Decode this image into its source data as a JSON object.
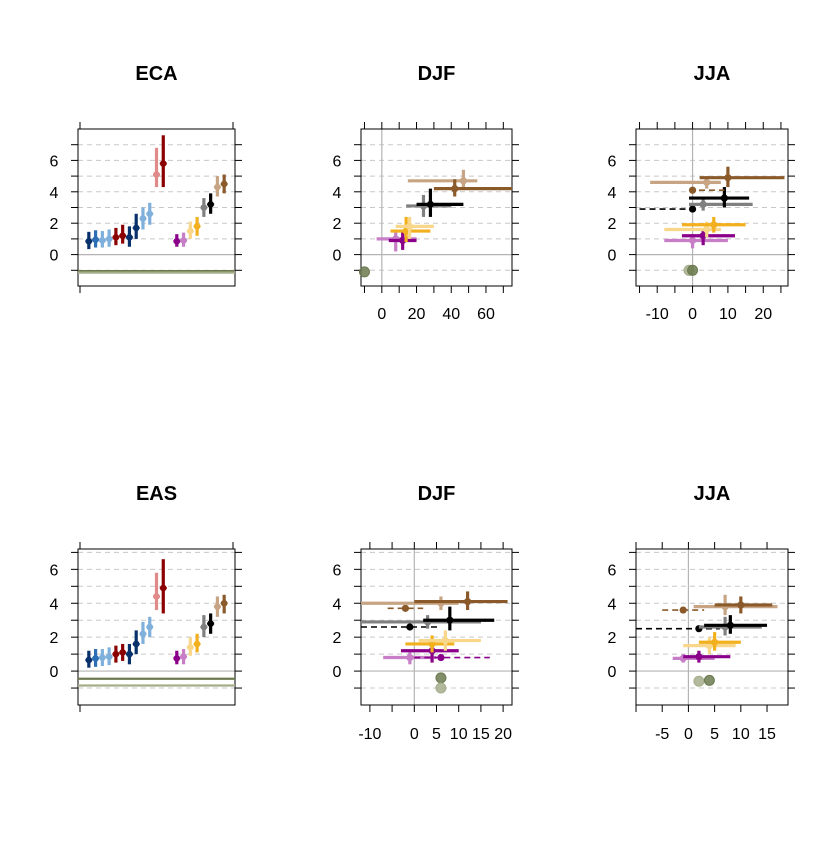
{
  "figure": {
    "type": "multi-panel error-bar plot (2 rows x 3 columns)",
    "colors": {
      "blue_dark": "#08306b",
      "blue_mid": "#2c6fb5",
      "blue_light": "#7fb0dc",
      "red_dark": "#8b0000",
      "red_light": "#e08a8a",
      "purple": "#8b008b",
      "purple_light": "#c77ec7",
      "yellow": "#f2b01e",
      "yellow_light": "#f8d68a",
      "black": "#000000",
      "gray": "#808080",
      "brown": "#8b5a2b",
      "brown_light": "#c7a584",
      "olive": "#6b7a4f",
      "olive_light": "#a4ad8c",
      "grid": "#c8c8c8",
      "zero_line": "#b4b4b4"
    }
  },
  "chart_data": [
    {
      "id": "eca-overview",
      "type": "scatter",
      "title": "ECA",
      "ylim": [
        -2,
        8
      ],
      "yticks": [
        0,
        2,
        4,
        6
      ],
      "xticks": [],
      "hlines": [
        {
          "y": -1.05,
          "color": "olive"
        },
        {
          "y": -1.15,
          "color": "olive_light"
        }
      ],
      "groups": [
        {
          "x": 1.0,
          "y": 0.85,
          "lo": 0.35,
          "hi": 1.45,
          "color": "blue_dark"
        },
        {
          "x": 1.5,
          "y": 0.95,
          "lo": 0.45,
          "hi": 1.55,
          "color": "blue_mid"
        },
        {
          "x": 2.0,
          "y": 0.9,
          "lo": 0.45,
          "hi": 1.5,
          "color": "blue_light"
        },
        {
          "x": 2.5,
          "y": 1.0,
          "lo": 0.5,
          "hi": 1.6,
          "color": "blue_light"
        },
        {
          "x": 3.0,
          "y": 1.1,
          "lo": 0.6,
          "hi": 1.7,
          "color": "red_dark"
        },
        {
          "x": 3.5,
          "y": 1.2,
          "lo": 0.7,
          "hi": 1.9,
          "color": "red_dark"
        },
        {
          "x": 4.0,
          "y": 1.1,
          "lo": 0.5,
          "hi": 1.8,
          "color": "blue_dark"
        },
        {
          "x": 4.5,
          "y": 1.7,
          "lo": 1.0,
          "hi": 2.6,
          "color": "blue_dark"
        },
        {
          "x": 5.0,
          "y": 2.3,
          "lo": 1.6,
          "hi": 3.0,
          "color": "blue_light"
        },
        {
          "x": 5.5,
          "y": 2.6,
          "lo": 1.9,
          "hi": 3.3,
          "color": "blue_light"
        },
        {
          "x": 6.0,
          "y": 5.1,
          "lo": 4.3,
          "hi": 6.8,
          "color": "red_light"
        },
        {
          "x": 6.5,
          "y": 5.8,
          "lo": 4.3,
          "hi": 7.6,
          "color": "red_dark"
        },
        {
          "x": 7.5,
          "y": 0.85,
          "lo": 0.5,
          "hi": 1.3,
          "color": "purple"
        },
        {
          "x": 8.0,
          "y": 0.9,
          "lo": 0.5,
          "hi": 1.4,
          "color": "purple_light"
        },
        {
          "x": 8.5,
          "y": 1.5,
          "lo": 1.0,
          "hi": 2.1,
          "color": "yellow_light"
        },
        {
          "x": 9.0,
          "y": 1.8,
          "lo": 1.2,
          "hi": 2.4,
          "color": "yellow"
        },
        {
          "x": 9.5,
          "y": 3.0,
          "lo": 2.4,
          "hi": 3.6,
          "color": "gray"
        },
        {
          "x": 10.0,
          "y": 3.2,
          "lo": 2.6,
          "hi": 3.9,
          "color": "black"
        },
        {
          "x": 10.5,
          "y": 4.3,
          "lo": 3.7,
          "hi": 5.0,
          "color": "brown_light"
        },
        {
          "x": 11.0,
          "y": 4.5,
          "lo": 3.9,
          "hi": 5.1,
          "color": "brown"
        }
      ]
    },
    {
      "id": "eca-djf",
      "type": "scatter",
      "title": "DJF",
      "xlim": [
        -12,
        75
      ],
      "ylim": [
        -2,
        8
      ],
      "xticks": [
        0,
        20,
        40,
        60
      ],
      "yticks": [
        0,
        2,
        4,
        6
      ],
      "xtick_labels": [
        "0",
        "20",
        "40",
        "60"
      ],
      "vline": 0,
      "points": [
        {
          "x": -10,
          "y": -1.1,
          "xlo": -10,
          "xhi": -10,
          "ylo": -1.1,
          "yhi": -1.1,
          "color": "olive",
          "hollow": true
        },
        {
          "x": 8,
          "y": 1.0,
          "xlo": -3,
          "xhi": 20,
          "ylo": 0.2,
          "yhi": 1.6,
          "color": "purple_light"
        },
        {
          "x": 12,
          "y": 0.9,
          "xlo": 4,
          "xhi": 20,
          "ylo": 0.3,
          "yhi": 1.5,
          "color": "purple"
        },
        {
          "x": 14,
          "y": 1.5,
          "xlo": 5,
          "xhi": 28,
          "ylo": 0.8,
          "yhi": 2.4,
          "color": "yellow"
        },
        {
          "x": 16,
          "y": 1.8,
          "xlo": 8,
          "xhi": 30,
          "ylo": 1.0,
          "yhi": 2.4,
          "color": "yellow_light"
        },
        {
          "x": 24,
          "y": 3.1,
          "xlo": 14,
          "xhi": 40,
          "ylo": 2.4,
          "yhi": 3.8,
          "color": "gray"
        },
        {
          "x": 28,
          "y": 3.2,
          "xlo": 20,
          "xhi": 47,
          "ylo": 2.4,
          "yhi": 4.2,
          "color": "black"
        },
        {
          "x": 47,
          "y": 4.7,
          "xlo": 15,
          "xhi": 55,
          "ylo": 4.2,
          "yhi": 5.4,
          "color": "brown_light"
        },
        {
          "x": 42,
          "y": 4.2,
          "xlo": 30,
          "xhi": 75,
          "ylo": 3.7,
          "yhi": 4.8,
          "color": "brown"
        }
      ]
    },
    {
      "id": "eca-jja",
      "type": "scatter",
      "title": "JJA",
      "xlim": [
        -16,
        27
      ],
      "ylim": [
        -2,
        8
      ],
      "xticks": [
        -10,
        0,
        10,
        20
      ],
      "yticks": [
        0,
        2,
        4,
        6
      ],
      "xtick_labels": [
        "-10",
        "0",
        "10",
        "20"
      ],
      "vline": 0,
      "points": [
        {
          "x": -1,
          "y": -1.0,
          "xlo": -1,
          "xhi": -1,
          "ylo": -1.0,
          "yhi": -1.0,
          "color": "olive_light",
          "hollow": true
        },
        {
          "x": 0,
          "y": -1.0,
          "xlo": 0,
          "xhi": 0,
          "ylo": -1.0,
          "yhi": -1.0,
          "color": "olive",
          "hollow": true
        },
        {
          "x": 0,
          "y": 0.9,
          "xlo": -8,
          "xhi": 10,
          "ylo": 0.4,
          "yhi": 1.3,
          "color": "purple_light"
        },
        {
          "x": 3,
          "y": 1.2,
          "xlo": -3,
          "xhi": 12,
          "ylo": 0.6,
          "yhi": 1.6,
          "color": "purple"
        },
        {
          "x": 4,
          "y": 1.6,
          "xlo": -8,
          "xhi": 8,
          "ylo": 1.1,
          "yhi": 2.1,
          "color": "yellow_light"
        },
        {
          "x": 6,
          "y": 1.9,
          "xlo": -3,
          "xhi": 15,
          "ylo": 1.4,
          "yhi": 2.4,
          "color": "yellow"
        },
        {
          "x": 0,
          "y": 2.9,
          "xlo": -15,
          "xhi": 0,
          "ylo": 2.9,
          "yhi": 2.9,
          "color": "black",
          "dashed": true
        },
        {
          "x": 3,
          "y": 3.2,
          "xlo": -1,
          "xhi": 17,
          "ylo": 2.8,
          "yhi": 3.6,
          "color": "gray"
        },
        {
          "x": 9,
          "y": 3.6,
          "xlo": -1,
          "xhi": 16,
          "ylo": 3.0,
          "yhi": 4.3,
          "color": "black"
        },
        {
          "x": 0,
          "y": 4.1,
          "xlo": -1,
          "xhi": 9,
          "ylo": 4.1,
          "yhi": 4.1,
          "color": "brown",
          "dashed": true
        },
        {
          "x": 4,
          "y": 4.6,
          "xlo": -12,
          "xhi": 8,
          "ylo": 4.2,
          "yhi": 5.0,
          "color": "brown_light"
        },
        {
          "x": 10,
          "y": 4.9,
          "xlo": 2,
          "xhi": 26,
          "ylo": 4.3,
          "yhi": 5.6,
          "color": "brown"
        }
      ]
    },
    {
      "id": "eas-overview",
      "type": "scatter",
      "title": "EAS",
      "ylim": [
        -2,
        7.2
      ],
      "yticks": [
        0,
        2,
        4,
        6
      ],
      "xticks": [],
      "hlines": [
        {
          "y": -0.45,
          "color": "olive"
        },
        {
          "y": -0.85,
          "color": "olive_light"
        }
      ],
      "groups": [
        {
          "x": 1.0,
          "y": 0.65,
          "lo": 0.2,
          "hi": 1.2,
          "color": "blue_dark"
        },
        {
          "x": 1.5,
          "y": 0.75,
          "lo": 0.25,
          "hi": 1.3,
          "color": "blue_mid"
        },
        {
          "x": 2.0,
          "y": 0.8,
          "lo": 0.3,
          "hi": 1.3,
          "color": "blue_light"
        },
        {
          "x": 2.5,
          "y": 0.85,
          "lo": 0.35,
          "hi": 1.4,
          "color": "blue_light"
        },
        {
          "x": 3.0,
          "y": 1.0,
          "lo": 0.5,
          "hi": 1.5,
          "color": "red_dark"
        },
        {
          "x": 3.5,
          "y": 1.1,
          "lo": 0.6,
          "hi": 1.6,
          "color": "red_dark"
        },
        {
          "x": 4.0,
          "y": 1.0,
          "lo": 0.4,
          "hi": 1.6,
          "color": "blue_dark"
        },
        {
          "x": 4.5,
          "y": 1.6,
          "lo": 1.0,
          "hi": 2.4,
          "color": "blue_dark"
        },
        {
          "x": 5.0,
          "y": 2.2,
          "lo": 1.6,
          "hi": 2.9,
          "color": "blue_light"
        },
        {
          "x": 5.5,
          "y": 2.6,
          "lo": 2.0,
          "hi": 3.2,
          "color": "blue_light"
        },
        {
          "x": 6.0,
          "y": 4.4,
          "lo": 3.6,
          "hi": 5.8,
          "color": "red_light"
        },
        {
          "x": 6.5,
          "y": 4.9,
          "lo": 3.4,
          "hi": 6.6,
          "color": "red_dark"
        },
        {
          "x": 7.5,
          "y": 0.75,
          "lo": 0.4,
          "hi": 1.2,
          "color": "purple"
        },
        {
          "x": 8.0,
          "y": 0.85,
          "lo": 0.4,
          "hi": 1.3,
          "color": "purple_light"
        },
        {
          "x": 8.5,
          "y": 1.4,
          "lo": 0.9,
          "hi": 2.0,
          "color": "yellow_light"
        },
        {
          "x": 9.0,
          "y": 1.6,
          "lo": 1.1,
          "hi": 2.2,
          "color": "yellow"
        },
        {
          "x": 9.5,
          "y": 2.6,
          "lo": 2.0,
          "hi": 3.3,
          "color": "gray"
        },
        {
          "x": 10.0,
          "y": 2.8,
          "lo": 2.2,
          "hi": 3.4,
          "color": "black"
        },
        {
          "x": 10.5,
          "y": 3.8,
          "lo": 3.2,
          "hi": 4.4,
          "color": "brown_light"
        },
        {
          "x": 11.0,
          "y": 4.0,
          "lo": 3.4,
          "hi": 4.5,
          "color": "brown"
        }
      ]
    },
    {
      "id": "eas-djf",
      "type": "scatter",
      "title": "DJF",
      "xlim": [
        -12,
        22
      ],
      "ylim": [
        -2,
        7.2
      ],
      "xticks": [
        -10,
        0,
        5,
        10,
        15,
        20
      ],
      "yticks": [
        0,
        2,
        4,
        6
      ],
      "xtick_labels": [
        "-10",
        "0",
        "5",
        "10",
        "15",
        "20"
      ],
      "vline": 0,
      "points": [
        {
          "x": 6,
          "y": -0.4,
          "xlo": 6,
          "xhi": 6,
          "ylo": -0.4,
          "yhi": -0.4,
          "color": "olive",
          "hollow": true
        },
        {
          "x": 6,
          "y": -1.0,
          "xlo": 6,
          "xhi": 6,
          "ylo": -1.0,
          "yhi": -1.0,
          "color": "olive_light",
          "hollow": true
        },
        {
          "x": -1,
          "y": 0.8,
          "xlo": -7,
          "xhi": 5,
          "ylo": 0.4,
          "yhi": 1.1,
          "color": "purple_light"
        },
        {
          "x": 6,
          "y": 0.8,
          "xlo": 0,
          "xhi": 17,
          "ylo": 0.8,
          "yhi": 0.8,
          "color": "purple",
          "dashed": true
        },
        {
          "x": 4,
          "y": 1.2,
          "xlo": -3,
          "xhi": 10,
          "ylo": 0.5,
          "yhi": 1.7,
          "color": "purple"
        },
        {
          "x": 4,
          "y": 1.6,
          "xlo": -2,
          "xhi": 9,
          "ylo": 1.1,
          "yhi": 2.1,
          "color": "yellow"
        },
        {
          "x": 7,
          "y": 1.8,
          "xlo": 1,
          "xhi": 15,
          "ylo": 1.2,
          "yhi": 2.4,
          "color": "yellow_light"
        },
        {
          "x": -1,
          "y": 2.6,
          "xlo": -12,
          "xhi": 6,
          "ylo": 2.6,
          "yhi": 2.6,
          "color": "black",
          "dashed": true
        },
        {
          "x": 3,
          "y": 2.9,
          "xlo": -12,
          "xhi": 15,
          "ylo": 2.5,
          "yhi": 3.3,
          "color": "gray"
        },
        {
          "x": 8,
          "y": 3.0,
          "xlo": 2,
          "xhi": 18,
          "ylo": 2.4,
          "yhi": 3.8,
          "color": "black"
        },
        {
          "x": -2,
          "y": 3.7,
          "xlo": -6,
          "xhi": 2,
          "ylo": 3.7,
          "yhi": 3.7,
          "color": "brown",
          "dashed": true
        },
        {
          "x": 6,
          "y": 4.0,
          "xlo": -12,
          "xhi": 10,
          "ylo": 3.6,
          "yhi": 4.4,
          "color": "brown_light"
        },
        {
          "x": 12,
          "y": 4.1,
          "xlo": 0,
          "xhi": 21,
          "ylo": 3.6,
          "yhi": 4.7,
          "color": "brown"
        }
      ]
    },
    {
      "id": "eas-jja",
      "type": "scatter",
      "title": "JJA",
      "xlim": [
        -10,
        19
      ],
      "ylim": [
        -2,
        7.2
      ],
      "xticks": [
        -5,
        0,
        5,
        10,
        15
      ],
      "yticks": [
        0,
        2,
        4,
        6
      ],
      "xtick_labels": [
        "-5",
        "0",
        "5",
        "10",
        "15"
      ],
      "vline": 0,
      "points": [
        {
          "x": 2,
          "y": -0.6,
          "xlo": 2,
          "xhi": 2,
          "ylo": -0.6,
          "yhi": -0.6,
          "color": "olive_light",
          "hollow": true
        },
        {
          "x": 4,
          "y": -0.55,
          "xlo": 4,
          "xhi": 4,
          "ylo": -0.55,
          "yhi": -0.55,
          "color": "olive",
          "hollow": true
        },
        {
          "x": -1,
          "y": 0.75,
          "xlo": -3,
          "xhi": 5,
          "ylo": 0.5,
          "yhi": 1.0,
          "color": "purple_light"
        },
        {
          "x": 2,
          "y": 0.85,
          "xlo": -1,
          "xhi": 8,
          "ylo": 0.5,
          "yhi": 1.2,
          "color": "purple"
        },
        {
          "x": 4,
          "y": 1.5,
          "xlo": -1,
          "xhi": 9,
          "ylo": 1.0,
          "yhi": 2.0,
          "color": "yellow_light"
        },
        {
          "x": 5,
          "y": 1.7,
          "xlo": 2,
          "xhi": 10,
          "ylo": 1.2,
          "yhi": 2.3,
          "color": "yellow"
        },
        {
          "x": 2,
          "y": 2.5,
          "xlo": -10,
          "xhi": 6,
          "ylo": 2.5,
          "yhi": 2.5,
          "color": "black",
          "dashed": true
        },
        {
          "x": 7,
          "y": 2.6,
          "xlo": 2,
          "xhi": 14,
          "ylo": 2.1,
          "yhi": 3.2,
          "color": "gray"
        },
        {
          "x": 8,
          "y": 2.7,
          "xlo": 3,
          "xhi": 15,
          "ylo": 2.2,
          "yhi": 3.3,
          "color": "black"
        },
        {
          "x": -1,
          "y": 3.6,
          "xlo": -5,
          "xhi": 3,
          "ylo": 3.6,
          "yhi": 3.6,
          "color": "brown",
          "dashed": true
        },
        {
          "x": 7,
          "y": 3.8,
          "xlo": 1,
          "xhi": 17,
          "ylo": 3.3,
          "yhi": 4.5,
          "color": "brown_light"
        },
        {
          "x": 10,
          "y": 3.9,
          "xlo": 5,
          "xhi": 16,
          "ylo": 3.4,
          "yhi": 4.4,
          "color": "brown"
        }
      ]
    }
  ]
}
